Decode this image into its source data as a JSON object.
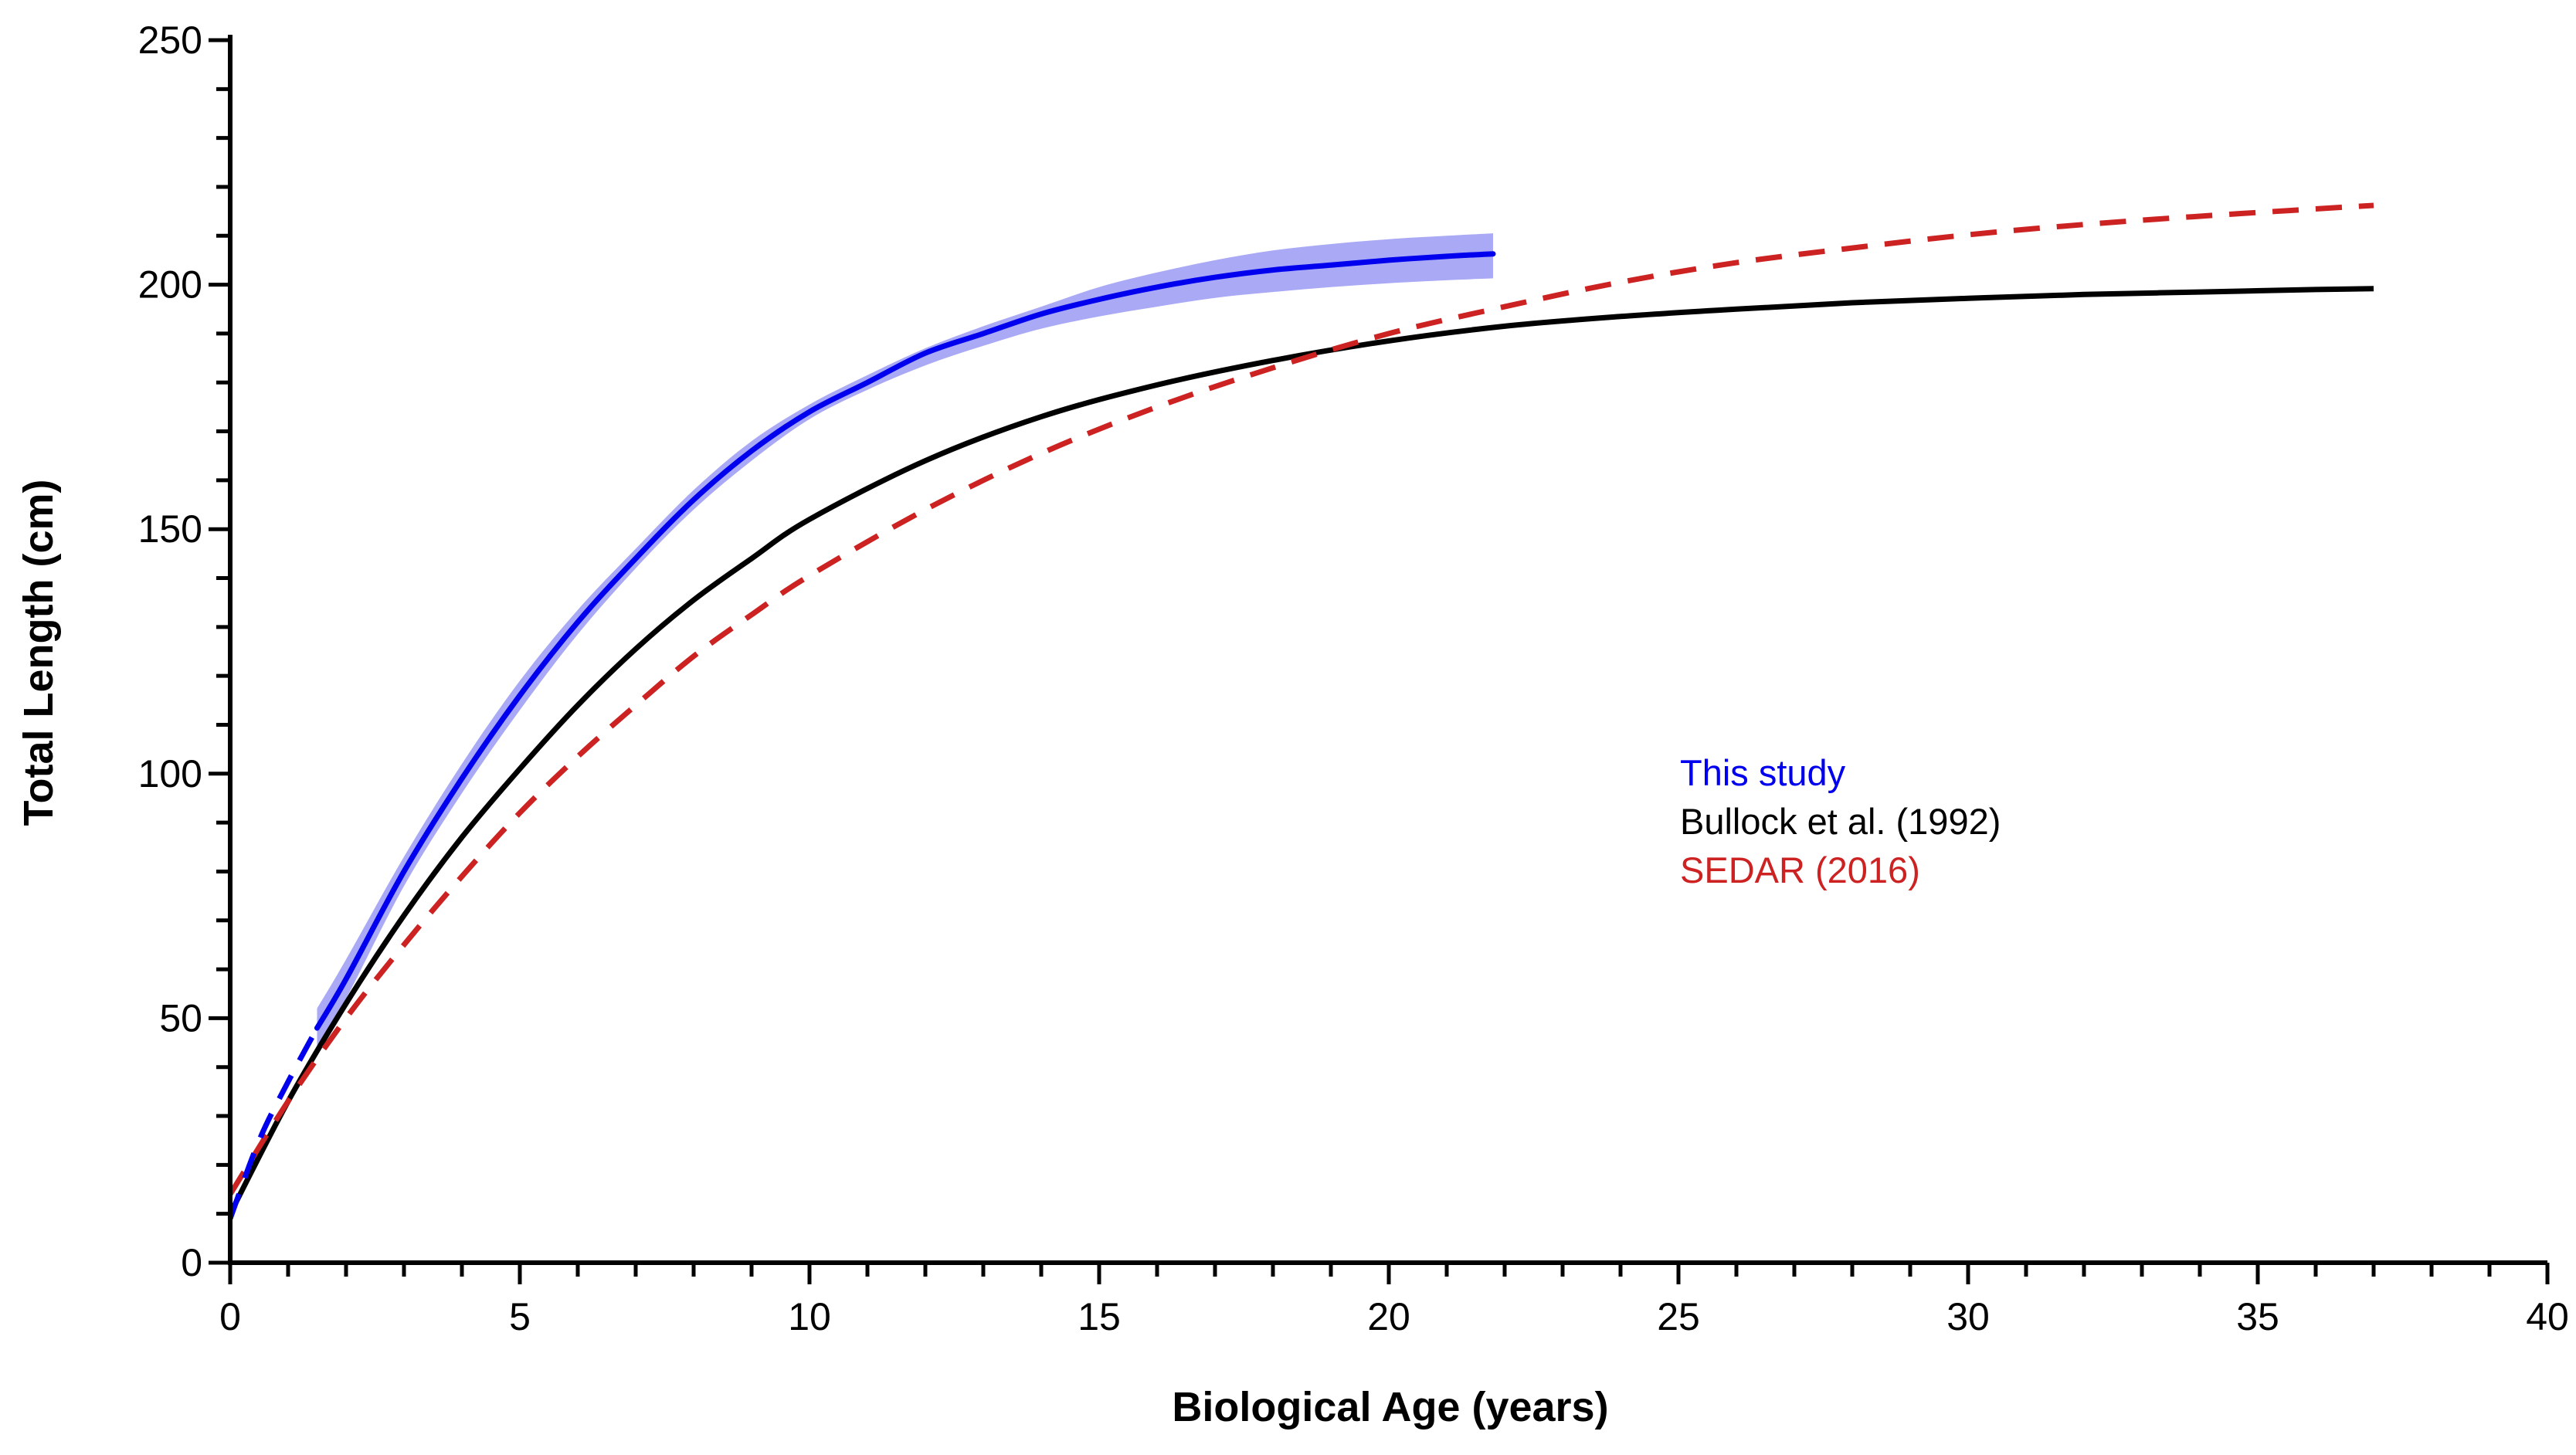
{
  "chart_data": {
    "type": "line",
    "xlabel": "Biological Age (years)",
    "ylabel": "Total Length (cm)",
    "xlim": [
      0,
      40
    ],
    "ylim": [
      0,
      250
    ],
    "x_ticks": [
      "0",
      "5",
      "10",
      "15",
      "20",
      "25",
      "30",
      "35",
      "40"
    ],
    "y_ticks": [
      "0",
      "50",
      "100",
      "150",
      "200",
      "250"
    ],
    "grid": false,
    "legend_position": "center-right",
    "series": [
      {
        "name": "This study",
        "color": "#0000ee",
        "band_color": "#a9a9f5",
        "style": "solid",
        "x": [
          0,
          0.5,
          1.0,
          1.5,
          2,
          3,
          4,
          5,
          6,
          7,
          8,
          9,
          10,
          11,
          12,
          13,
          14,
          15,
          16,
          17,
          18,
          19,
          20,
          21,
          21.8
        ],
        "y": [
          9,
          25,
          37,
          48,
          58,
          80,
          99,
          116,
          131,
          144,
          156,
          166,
          174,
          180,
          186,
          190,
          194,
          197,
          199.5,
          201.5,
          203,
          204,
          205,
          205.8,
          206.3
        ],
        "band_lower": [
          null,
          null,
          null,
          44,
          54,
          77,
          96,
          113,
          128.5,
          142,
          154,
          164,
          172.5,
          178.5,
          183.5,
          187.5,
          191,
          193.5,
          195.5,
          197.3,
          198.5,
          199.5,
          200.3,
          200.9,
          201.3
        ],
        "band_upper": [
          null,
          null,
          null,
          52,
          62,
          83,
          102,
          119,
          133.5,
          146,
          158,
          168,
          175.5,
          181.5,
          187,
          191.5,
          195.5,
          199.5,
          202.5,
          205,
          207,
          208.3,
          209.3,
          210,
          210.5
        ]
      },
      {
        "name": "Bullock et al. (1992)",
        "color": "#000000",
        "style": "solid",
        "x": [
          0,
          1,
          2,
          3,
          4,
          5,
          6,
          7,
          8,
          9,
          10,
          12,
          14,
          16,
          18,
          20,
          22,
          24,
          26,
          28,
          30,
          32,
          34,
          36,
          37
        ],
        "y": [
          10,
          33,
          53,
          71,
          87,
          101,
          114,
          125.5,
          135.5,
          144,
          152,
          164,
          173,
          179.5,
          184.5,
          188.5,
          191.5,
          193.5,
          195,
          196.3,
          197.2,
          198,
          198.5,
          199,
          199.2
        ]
      },
      {
        "name": "SEDAR (2016)",
        "color": "#cc2222",
        "style": "dashed",
        "x": [
          0,
          1,
          2,
          3,
          4,
          5,
          6,
          7,
          8,
          9,
          10,
          12,
          14,
          16,
          18,
          20,
          22,
          24,
          26,
          28,
          30,
          32,
          34,
          36,
          37
        ],
        "y": [
          14,
          33,
          50,
          65,
          79,
          92,
          103.5,
          114,
          124,
          132.5,
          140.5,
          154,
          165.5,
          175,
          183,
          190,
          195.5,
          200.5,
          204.5,
          207.5,
          210.2,
          212.3,
          214,
          215.5,
          216.2
        ]
      }
    ]
  }
}
